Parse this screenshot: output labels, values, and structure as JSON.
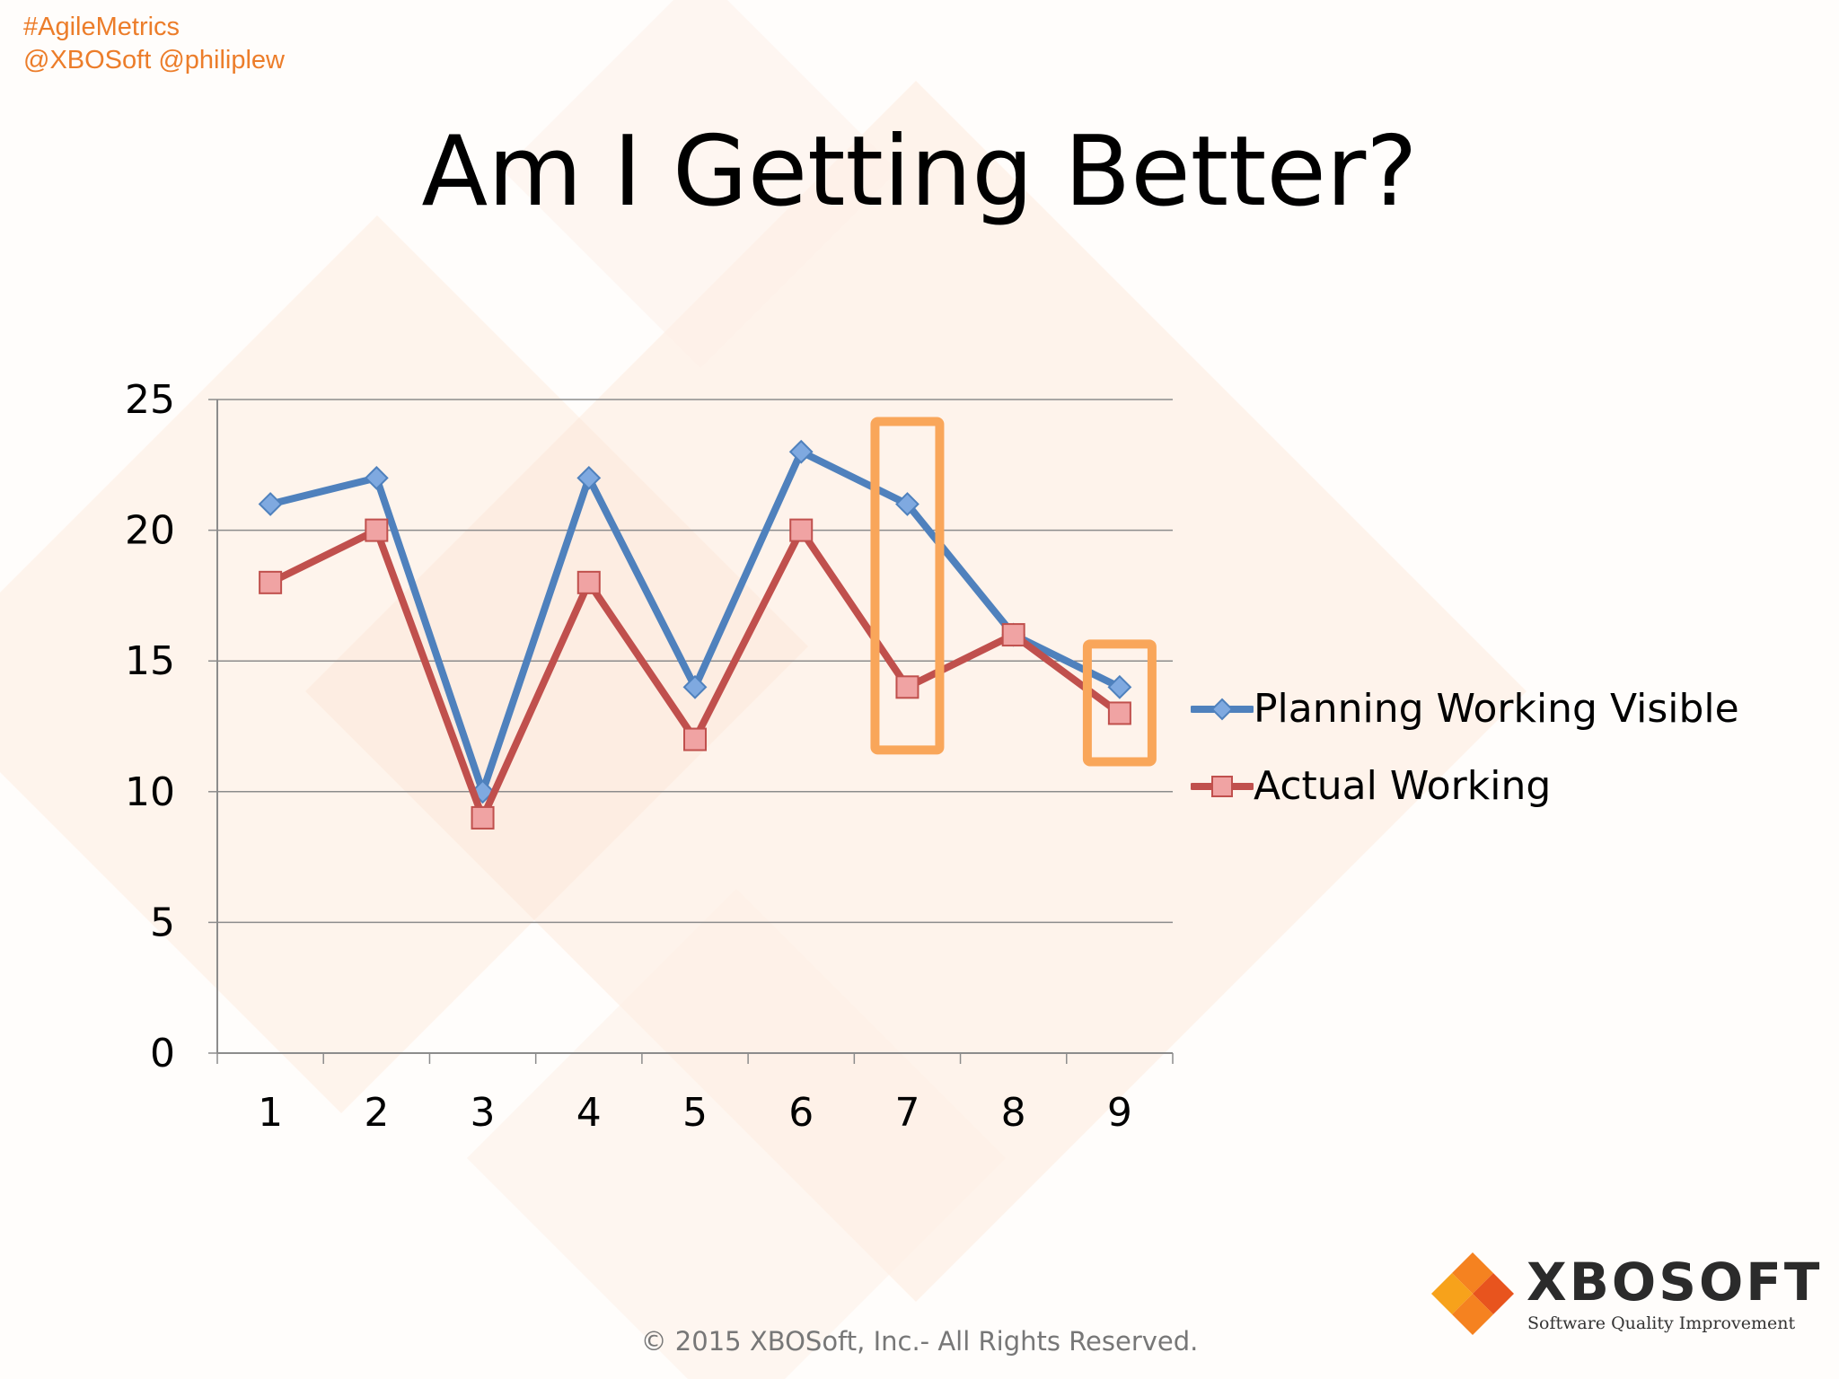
{
  "header": {
    "hashtag": "#AgileMetrics",
    "handles": "@XBOSoft @philiplew"
  },
  "slide": {
    "title": "Am I Getting Better?",
    "copyright": "© 2015 XBOSoft, Inc.- All Rights Reserved."
  },
  "logo": {
    "name": "XBOSOFT",
    "tagline": "Software Quality Improvement",
    "icon": "diamond-grid-logo-icon"
  },
  "colors": {
    "orange_text": "#ec7d2a",
    "highlight_box": "#f9a65a",
    "series_blue": "#4f81bd",
    "series_red": "#c0504d",
    "gridline": "#8c8c8c"
  },
  "chart_data": {
    "type": "line",
    "categories": [
      "1",
      "2",
      "3",
      "4",
      "5",
      "6",
      "7",
      "8",
      "9"
    ],
    "series": [
      {
        "name": "Planning Working Visible",
        "marker": "diamond",
        "color": "#4f81bd",
        "values": [
          21,
          22,
          10,
          22,
          14,
          23,
          21,
          16,
          14
        ]
      },
      {
        "name": "Actual Working",
        "marker": "square",
        "color": "#c0504d",
        "values": [
          18,
          20,
          9,
          18,
          12,
          20,
          14,
          16,
          13
        ]
      }
    ],
    "ylim": [
      0,
      25
    ],
    "yticks": [
      0,
      5,
      10,
      15,
      20,
      25
    ],
    "grid": "horizontal",
    "legend_position": "right",
    "highlighted_categories": [
      "7",
      "9"
    ]
  }
}
